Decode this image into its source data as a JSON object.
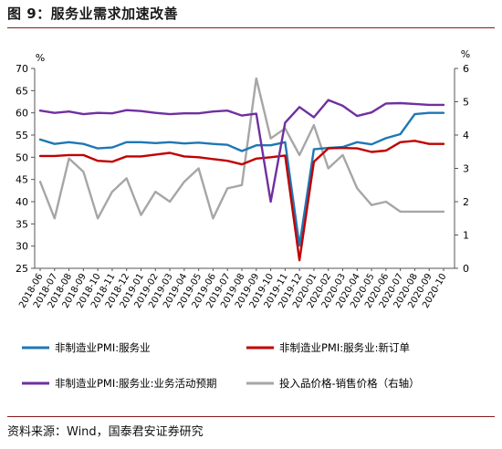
{
  "figure": {
    "title": "图 9：服务业需求加速改善",
    "source": "资料来源：Wind，国泰君安证券研究"
  },
  "chart_data": {
    "type": "line",
    "left_unit": "%",
    "right_unit": "%",
    "ylim_left": [
      25,
      70
    ],
    "ylim_right": [
      0,
      6
    ],
    "yticks_left": [
      25,
      30,
      35,
      40,
      45,
      50,
      55,
      60,
      65,
      70
    ],
    "yticks_right": [
      0,
      1,
      2,
      3,
      4,
      5,
      6
    ],
    "categories": [
      "2018-06",
      "2018-07",
      "2018-08",
      "2018-09",
      "2018-10",
      "2018-11",
      "2018-12",
      "2019-01",
      "2019-02",
      "2019-03",
      "2019-04",
      "2019-05",
      "2019-06",
      "2019-07",
      "2019-08",
      "2019-09",
      "2019-10",
      "2019-11",
      "2019-12",
      "2020-01",
      "2020-02",
      "2020-03",
      "2020-04",
      "2020-05",
      "2020-06",
      "2020-07",
      "2020-08",
      "2020-09",
      "2020-10"
    ],
    "x_tick_labels": [
      "2018-06",
      "2018-07",
      "2018-08",
      "2018-09",
      "2018-10",
      "2018-11",
      "2018-12",
      "2019-01",
      "2019-02",
      "2019-03",
      "2019-04",
      "2019-05",
      "2019-06",
      "2019-07",
      "2019-08",
      "2019-09",
      "2019-10",
      "2019-11",
      "2019-12",
      "2020-01",
      "2020-02",
      "2020-03",
      "2020-04",
      "2020-05",
      "2020-06",
      "2020-07",
      "2020-08",
      "2020-09",
      "2020-10"
    ],
    "series": [
      {
        "name": "非制造业PMI:服务业",
        "axis": "left",
        "color": "#1f77b4",
        "values": [
          54.0,
          53.0,
          53.4,
          53.0,
          52.0,
          52.2,
          53.4,
          53.4,
          53.2,
          53.4,
          53.1,
          53.3,
          53.0,
          52.8,
          51.4,
          52.7,
          52.7,
          53.4,
          30.1,
          51.8,
          52.1,
          52.3,
          53.4,
          52.9,
          54.3,
          55.2,
          59.7,
          60.0,
          60.0
        ]
      },
      {
        "name": "非制造业PMI:服务业:新订单",
        "axis": "left",
        "color": "#c00000",
        "values": [
          50.3,
          50.3,
          50.5,
          50.5,
          49.2,
          49.0,
          50.2,
          50.2,
          50.6,
          51.0,
          50.2,
          50.0,
          49.6,
          49.2,
          48.4,
          49.7,
          50.0,
          50.4,
          26.8,
          49.0,
          52.0,
          52.1,
          52.0,
          51.2,
          51.5,
          53.4,
          53.7,
          53.0,
          53.0
        ]
      },
      {
        "name": "非制造业PMI:服务业:业务活动预期",
        "axis": "left",
        "color": "#7030a0",
        "values": [
          60.5,
          60.0,
          60.3,
          59.7,
          60.0,
          59.9,
          60.6,
          60.4,
          60.0,
          59.7,
          59.9,
          59.9,
          60.3,
          60.5,
          59.4,
          59.8,
          40.0,
          57.8,
          61.3,
          59.0,
          62.9,
          61.6,
          59.3,
          60.1,
          62.1,
          62.2,
          62.0,
          61.8,
          61.8
        ]
      },
      {
        "name": "投入品价格-销售价格（右轴）",
        "axis": "right",
        "color": "#a6a6a6",
        "values": [
          2.6,
          1.5,
          3.3,
          2.9,
          1.5,
          2.3,
          2.7,
          1.6,
          2.3,
          2.0,
          2.6,
          3.0,
          1.5,
          2.4,
          2.5,
          5.7,
          3.9,
          4.2,
          3.4,
          4.3,
          3.0,
          3.4,
          2.4,
          1.9,
          2.0,
          1.7,
          1.7,
          1.7,
          1.7
        ]
      }
    ]
  }
}
